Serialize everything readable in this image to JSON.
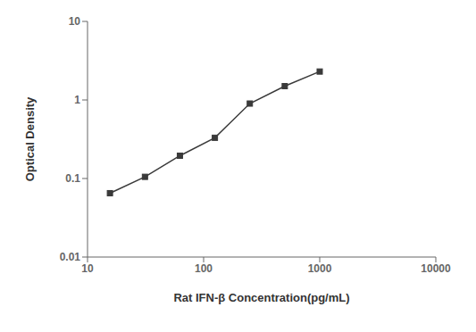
{
  "chart_data": {
    "type": "line",
    "x": [
      15.6,
      31.25,
      62.5,
      125,
      250,
      500,
      1000
    ],
    "values": [
      0.065,
      0.105,
      0.195,
      0.33,
      0.9,
      1.5,
      2.3
    ],
    "xlabel": "Rat IFN-β Concentration(pg/mL)",
    "ylabel": "Optical Density",
    "xlim": [
      10,
      10000
    ],
    "ylim": [
      0.01,
      10
    ],
    "xticks": [
      10,
      100,
      1000,
      10000
    ],
    "yticks": [
      0.01,
      0.1,
      1,
      10
    ],
    "log": true,
    "grid": false,
    "color": "#3a3a3a",
    "marker": "square"
  }
}
